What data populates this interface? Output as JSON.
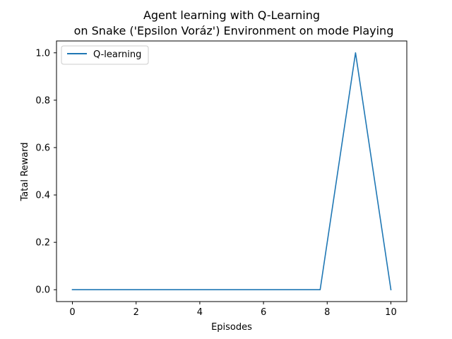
{
  "chart_data": {
    "type": "line",
    "title_line1": "Agent learning with Q-Learning",
    "title_line2": "on Snake ('Epsilon Voráz') Environment on mode Playing",
    "xlabel": "Episodes",
    "ylabel": "Tatal Reward",
    "xlim": [
      -0.5,
      10.5
    ],
    "ylim": [
      -0.05,
      1.05
    ],
    "xticks": [
      0,
      2,
      4,
      6,
      8,
      10
    ],
    "xtick_labels": [
      "0",
      "2",
      "4",
      "6",
      "8",
      "10"
    ],
    "yticks": [
      0.0,
      0.2,
      0.4,
      0.6,
      0.8,
      1.0
    ],
    "ytick_labels": [
      "0.0",
      "0.2",
      "0.4",
      "0.6",
      "0.8",
      "1.0"
    ],
    "grid": false,
    "legend_position": "upper-left",
    "series": [
      {
        "name": "Q-learning",
        "color": "#1f77b4",
        "x": [
          0,
          1.111,
          2.222,
          3.333,
          4.444,
          5.556,
          6.667,
          7.778,
          8.889,
          10
        ],
        "y": [
          0,
          0,
          0,
          0,
          0,
          0,
          0,
          0,
          1,
          0
        ]
      }
    ]
  }
}
